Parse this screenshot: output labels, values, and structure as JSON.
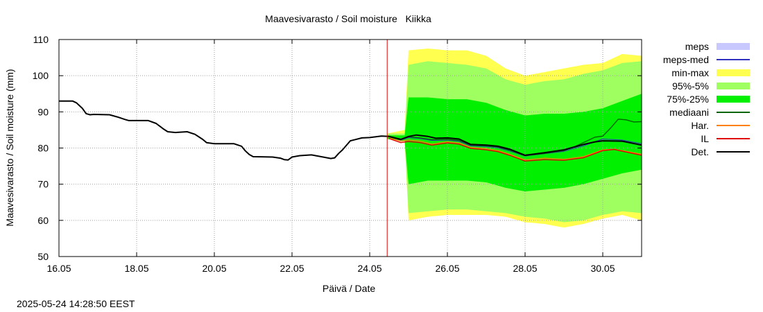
{
  "chart_data": {
    "type": "area",
    "title": "Maavesivarasto / Soil moisture   Kiikka",
    "xlabel": "Päivä / Date",
    "ylabel": "Maavesivarasto / Soil moisture (mm)",
    "timestamp": "2025-05-24 14:28:50 EEST",
    "xlim": [
      0,
      15
    ],
    "ylim": [
      50,
      110
    ],
    "yticks": [
      50,
      60,
      70,
      80,
      90,
      100,
      110
    ],
    "xticks": [
      {
        "x": 0,
        "label": "16.05"
      },
      {
        "x": 2,
        "label": "18.05"
      },
      {
        "x": 4,
        "label": "20.05"
      },
      {
        "x": 6,
        "label": "22.05"
      },
      {
        "x": 8,
        "label": "24.05"
      },
      {
        "x": 10,
        "label": "26.05"
      },
      {
        "x": 12,
        "label": "28.05"
      },
      {
        "x": 14,
        "label": "30.05"
      }
    ],
    "grid": true,
    "legend_position": "right",
    "forecast_start_x": 8.45,
    "colors": {
      "meps": "#c8c8ff",
      "meps_med": "#3030c0",
      "minmax": "#ffff50",
      "p95_5": "#a0ff60",
      "p75_25": "#00f000",
      "median": "#006400",
      "har": "#ff8000",
      "il": "#e00000",
      "det": "#000000",
      "forecast_line": "#e00000",
      "grid": "#a0a0a0"
    },
    "legend": [
      {
        "label": "meps",
        "kind": "box",
        "color_key": "meps"
      },
      {
        "label": "meps-med",
        "kind": "line",
        "color_key": "meps_med"
      },
      {
        "label": "min-max",
        "kind": "box",
        "color_key": "minmax"
      },
      {
        "label": "95%-5%",
        "kind": "box",
        "color_key": "p95_5"
      },
      {
        "label": "75%-25%",
        "kind": "box",
        "color_key": "p75_25"
      },
      {
        "label": "mediaani",
        "kind": "line",
        "color_key": "median"
      },
      {
        "label": "Har.",
        "kind": "line",
        "color_key": "har"
      },
      {
        "label": "IL",
        "kind": "line",
        "color_key": "il"
      },
      {
        "label": "Det.",
        "kind": "line",
        "color_key": "det"
      }
    ],
    "bands": {
      "x": [
        8.45,
        8.9,
        9.0,
        9.5,
        10.0,
        10.5,
        11.0,
        11.5,
        12.0,
        12.5,
        13.0,
        13.5,
        14.0,
        14.5,
        15.0
      ],
      "minmax_low": [
        82.5,
        82,
        60,
        61,
        61.5,
        61.5,
        61.5,
        61,
        59.5,
        59,
        58,
        59,
        60.5,
        61.5,
        60
      ],
      "minmax_high": [
        84,
        85,
        107,
        107.5,
        107,
        107,
        105.5,
        102,
        100,
        101,
        102,
        103,
        103.5,
        106,
        105.5
      ],
      "p95_low": [
        82.5,
        82,
        62,
        62.5,
        63,
        63,
        62.5,
        62,
        61,
        60.5,
        59.5,
        60,
        61.5,
        62.5,
        62
      ],
      "p95_high": [
        84,
        84,
        103,
        104,
        103.5,
        103,
        102,
        99,
        97.5,
        98.5,
        99,
        100.5,
        101.5,
        103.5,
        104
      ],
      "p75_low": [
        82.5,
        82,
        70,
        71,
        71,
        71,
        70.5,
        69,
        68,
        68.5,
        69,
        70,
        71.5,
        73,
        74
      ],
      "p75_high": [
        83.5,
        83.5,
        94,
        94,
        93.5,
        93.5,
        92.5,
        90.5,
        89,
        89.5,
        89.5,
        90,
        91,
        93,
        95
      ]
    },
    "series": [
      {
        "name": "Det.",
        "color_key": "det",
        "width": 2,
        "x": [
          0,
          0.35,
          0.45,
          0.6,
          0.7,
          0.8,
          0.9,
          1.3,
          1.5,
          1.7,
          1.8,
          2.3,
          2.5,
          2.6,
          2.7,
          2.8,
          3.0,
          3.3,
          3.5,
          3.7,
          3.8,
          4.0,
          4.5,
          4.7,
          4.8,
          4.9,
          5.0,
          5.5,
          5.7,
          5.8,
          5.9,
          6.0,
          6.2,
          6.5,
          6.8,
          7.0,
          7.1,
          7.2,
          7.3,
          7.5,
          7.8,
          8.0,
          8.3,
          8.5,
          8.8,
          9.0,
          9.2,
          9.5,
          9.7,
          10.0,
          10.3,
          10.6,
          11.0,
          11.3,
          11.6,
          12.0,
          12.5,
          13.0,
          13.5,
          13.8,
          14.0,
          14.5,
          15.0
        ],
        "y": [
          93,
          93,
          92.5,
          91,
          89.5,
          89.2,
          89.3,
          89.2,
          88.6,
          87.9,
          87.6,
          87.6,
          86.8,
          86,
          85.2,
          84.5,
          84.3,
          84.5,
          83.8,
          82.4,
          81.5,
          81.2,
          81.2,
          80.5,
          79.2,
          78.2,
          77.6,
          77.5,
          77.2,
          76.8,
          76.7,
          77.5,
          77.9,
          78.1,
          77.5,
          77.1,
          77.3,
          78.5,
          79.5,
          82,
          82.8,
          82.9,
          83.3,
          83.2,
          82.4,
          83.2,
          83.6,
          83.2,
          82.7,
          82.8,
          82.5,
          81,
          80.8,
          80.5,
          79.7,
          78,
          78.7,
          79.5,
          81,
          81.7,
          82,
          81.9,
          80.8
        ]
      },
      {
        "name": "mediaani",
        "color_key": "median",
        "width": 1.4,
        "x": [
          8.5,
          8.8,
          9.0,
          9.3,
          9.6,
          10.0,
          10.3,
          10.6,
          11.0,
          11.3,
          11.6,
          12.0,
          12.5,
          13.0,
          13.3,
          13.6,
          13.8,
          14.0,
          14.2,
          14.4,
          14.6,
          14.8,
          15.0
        ],
        "y": [
          83.1,
          82.3,
          83.1,
          82.8,
          82.3,
          82.4,
          82.1,
          80.8,
          80.6,
          80.3,
          79.4,
          77.9,
          78.5,
          79.3,
          80.5,
          82,
          83,
          83.3,
          85.5,
          88,
          87.8,
          87.2,
          87.3
        ]
      },
      {
        "name": "meps-med",
        "color_key": "meps_med",
        "width": 1,
        "x": [
          8.5,
          8.8,
          9.0,
          9.3,
          9.6,
          10.0,
          10.3,
          10.6,
          11.0,
          11.3,
          11.6,
          12.0,
          12.5,
          13.0,
          13.5,
          14.0,
          14.5,
          15.0
        ],
        "y": [
          83.1,
          82.2,
          82.9,
          82.6,
          82.1,
          82.2,
          81.9,
          80.6,
          80.4,
          80.1,
          79.2,
          77.8,
          78.4,
          79.1,
          80.6,
          82.5,
          82.2,
          81.2
        ]
      },
      {
        "name": "Har.",
        "color_key": "har",
        "width": 1.2,
        "x": [
          8.5,
          8.8,
          9.0,
          9.3,
          9.6,
          10.0,
          10.3,
          10.6,
          11.0,
          11.3,
          11.6,
          12.0,
          12.5,
          13.0,
          13.5,
          14.0,
          14.3,
          14.6,
          15.0
        ],
        "y": [
          82.8,
          81.9,
          82.2,
          81.9,
          81.1,
          81.7,
          81.4,
          80.2,
          79.8,
          79.3,
          78.3,
          76.7,
          77.2,
          76.9,
          77.6,
          79.5,
          79.7,
          79.1,
          78.3
        ]
      },
      {
        "name": "IL",
        "color_key": "il",
        "width": 1.4,
        "x": [
          8.5,
          8.8,
          9.0,
          9.3,
          9.6,
          10.0,
          10.3,
          10.6,
          11.0,
          11.3,
          11.6,
          12.0,
          12.5,
          13.0,
          13.5,
          14.0,
          14.3,
          14.6,
          15.0
        ],
        "y": [
          82.6,
          81.5,
          81.8,
          81.5,
          80.8,
          81.4,
          81.1,
          79.9,
          79.5,
          79.0,
          78.0,
          76.4,
          76.8,
          76.6,
          77.3,
          79.3,
          79.6,
          78.9,
          78.0
        ]
      }
    ]
  }
}
